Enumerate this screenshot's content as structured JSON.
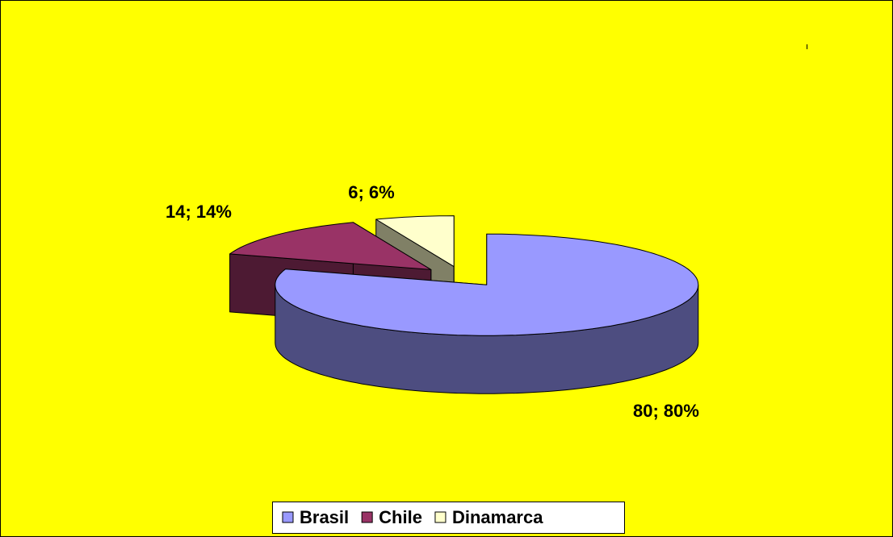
{
  "chart_data": {
    "type": "pie",
    "categories": [
      "Brasil",
      "Chile",
      "Dinamarca"
    ],
    "values": [
      80,
      14,
      6
    ],
    "value_labels": [
      "80; 80%",
      "14; 14%",
      "6; 6%"
    ],
    "colors": [
      "#9999ff",
      "#993366",
      "#ffffcc"
    ],
    "legend": "bottom"
  }
}
